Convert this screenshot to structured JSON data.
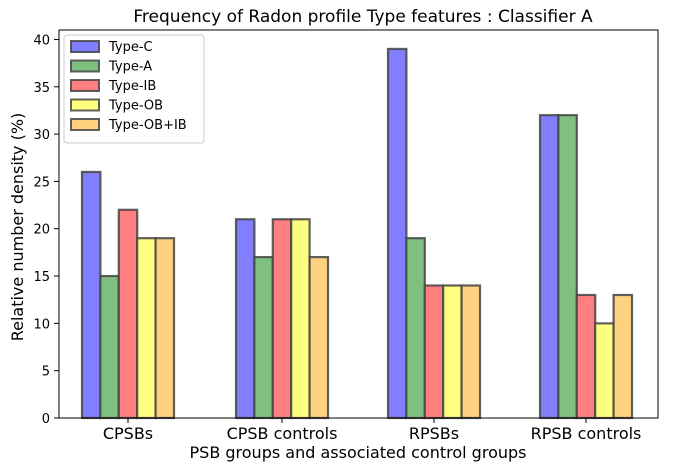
{
  "chart_data": {
    "type": "bar",
    "title": "Frequency of Radon profile Type features : Classifier A",
    "xlabel": "PSB groups and associated control groups",
    "ylabel": "Relative number density (%)",
    "ylim": [
      0,
      41
    ],
    "yticks": [
      0,
      5,
      10,
      15,
      20,
      25,
      30,
      35,
      40
    ],
    "categories": [
      "CPSBs",
      "CPSB controls",
      "RPSBs",
      "RPSB controls"
    ],
    "grid": false,
    "legend_position": "top-left",
    "series": [
      {
        "name": "Type-C",
        "color": "#7f7fff",
        "values": [
          26,
          21,
          39,
          32
        ]
      },
      {
        "name": "Type-A",
        "color": "#7fbf7f",
        "values": [
          15,
          17,
          19,
          32
        ]
      },
      {
        "name": "Type-IB",
        "color": "#ff7f7f",
        "values": [
          22,
          21,
          14,
          13
        ]
      },
      {
        "name": "Type-OB",
        "color": "#ffff7f",
        "values": [
          19,
          21,
          14,
          10
        ]
      },
      {
        "name": "Type-OB+IB",
        "color": "#ffd27f",
        "values": [
          19,
          17,
          14,
          13
        ]
      }
    ]
  }
}
